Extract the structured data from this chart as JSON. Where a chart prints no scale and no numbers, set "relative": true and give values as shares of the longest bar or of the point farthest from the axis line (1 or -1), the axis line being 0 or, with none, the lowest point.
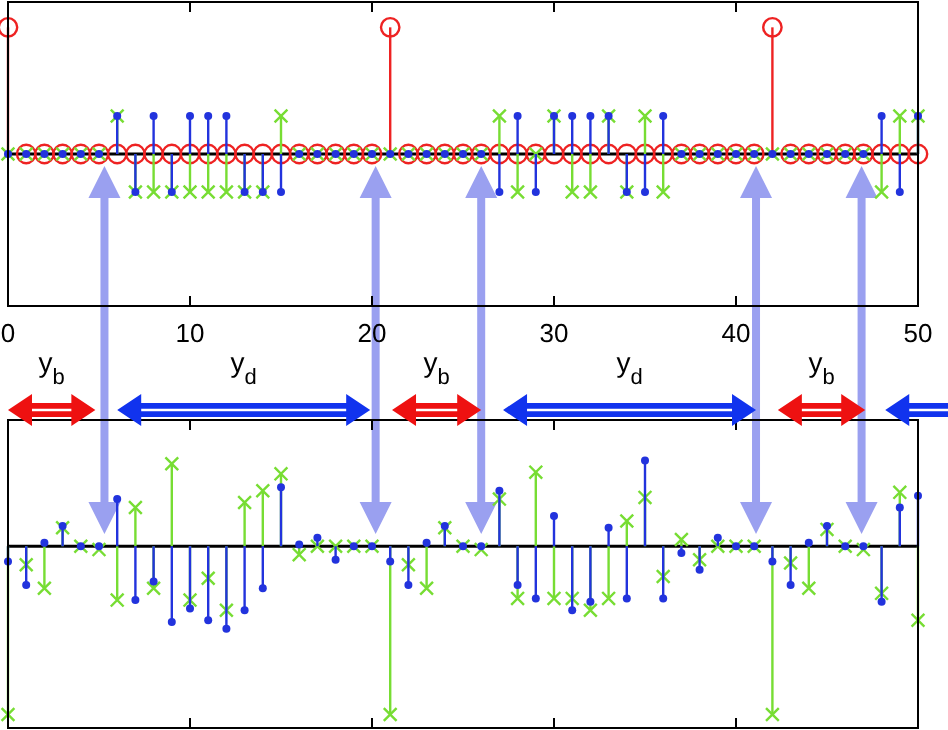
{
  "chart_data": [
    {
      "type": "lollipop",
      "relative": true,
      "x": [
        0,
        1,
        2,
        3,
        4,
        5,
        6,
        7,
        8,
        9,
        10,
        11,
        12,
        13,
        14,
        15,
        16,
        17,
        18,
        19,
        20,
        21,
        22,
        23,
        24,
        25,
        26,
        27,
        28,
        29,
        30,
        31,
        32,
        33,
        34,
        35,
        36,
        37,
        38,
        39,
        40,
        41,
        42,
        43,
        44,
        45,
        46,
        47,
        48,
        49,
        50
      ],
      "xlim": [
        0,
        50
      ],
      "xticks": [
        0,
        10,
        20,
        30,
        40,
        50
      ],
      "tick_labels": "x",
      "grid": false,
      "series": [
        {
          "color": "#ee2222",
          "marker": "circle",
          "values": [
            1,
            0,
            0,
            0,
            0,
            0,
            0,
            0,
            0,
            0,
            0,
            0,
            0,
            0,
            0,
            0,
            0,
            0,
            0,
            0,
            0,
            1,
            0,
            0,
            0,
            0,
            0,
            0,
            0,
            0,
            0,
            0,
            0,
            0,
            0,
            0,
            0,
            0,
            0,
            0,
            0,
            0,
            1,
            0,
            0,
            0,
            0,
            0,
            0,
            0,
            0
          ]
        },
        {
          "color": "#77dd33",
          "marker": "cross",
          "values": [
            0,
            0,
            0,
            0,
            0,
            0,
            0.3,
            -0.3,
            -0.3,
            -0.3,
            -0.3,
            -0.3,
            -0.3,
            -0.3,
            -0.3,
            0.3,
            0,
            0,
            0,
            0,
            0,
            0,
            0,
            0,
            0,
            0,
            0,
            0.3,
            -0.3,
            0,
            0.3,
            -0.3,
            -0.3,
            0.3,
            -0.3,
            0.3,
            -0.3,
            0,
            0,
            0,
            0,
            0,
            0,
            0,
            0,
            0,
            0,
            0,
            -0.3,
            0.3,
            0.3
          ]
        },
        {
          "color": "#2233dd",
          "marker": "circle",
          "values": [
            0,
            0,
            0,
            0,
            0,
            0,
            0.3,
            -0.3,
            0.3,
            -0.3,
            0.3,
            0.3,
            0.3,
            -0.3,
            -0.3,
            -0.3,
            0,
            0,
            0,
            0,
            0,
            0,
            0,
            0,
            0,
            0,
            0,
            -0.3,
            0.3,
            -0.3,
            0.3,
            0.3,
            0.3,
            0.3,
            -0.3,
            -0.3,
            0.3,
            0,
            0,
            0,
            0,
            0,
            0,
            0,
            0,
            0,
            0,
            0,
            0.3,
            -0.3,
            0.3
          ]
        }
      ],
      "annotations": [
        "y$_{b}$",
        "y$_{d}$",
        "y$_{b}$",
        "y$_{d}$",
        "y$_{b}$"
      ]
    },
    {
      "type": "lollipop",
      "relative": true,
      "x": [
        0,
        1,
        2,
        3,
        4,
        5,
        6,
        7,
        8,
        9,
        10,
        11,
        12,
        13,
        14,
        15,
        16,
        17,
        18,
        19,
        20,
        21,
        22,
        23,
        24,
        25,
        26,
        27,
        28,
        29,
        30,
        31,
        32,
        33,
        34,
        35,
        36,
        37,
        38,
        39,
        40,
        41,
        42,
        43,
        44,
        45,
        46,
        47,
        48,
        49,
        50
      ],
      "xlim": [
        0,
        50
      ],
      "xticks": [
        0,
        10,
        20,
        30,
        40,
        50
      ],
      "tick_labels": false,
      "grid": false,
      "series": [
        {
          "color": "#77dd33",
          "marker": "cross",
          "values": [
            -1,
            -0.11,
            -0.25,
            0.11,
            0,
            -0.02,
            -0.32,
            0.23,
            -0.25,
            0.49,
            -0.32,
            -0.19,
            -0.38,
            0.26,
            0.33,
            0.43,
            -0.05,
            0,
            0,
            0,
            0,
            -1,
            -0.11,
            -0.25,
            0.11,
            0,
            -0.02,
            0.28,
            -0.31,
            0.44,
            -0.31,
            -0.31,
            -0.38,
            -0.31,
            0.15,
            0.29,
            -0.18,
            0.04,
            -0.08,
            0,
            0,
            0,
            -1,
            -0.1,
            -0.25,
            0.1,
            0,
            -0.02,
            -0.28,
            0.32,
            -0.44
          ]
        },
        {
          "color": "#2233dd",
          "marker": "circle",
          "values": [
            -0.09,
            -0.23,
            0.02,
            0.12,
            0,
            0,
            0.28,
            -0.32,
            -0.21,
            -0.45,
            -0.37,
            -0.44,
            -0.49,
            -0.38,
            -0.25,
            0.35,
            0.01,
            0.05,
            -0.08,
            0,
            0,
            -0.09,
            -0.23,
            0.02,
            0.12,
            0,
            0,
            0.33,
            -0.23,
            -0.31,
            0.18,
            -0.38,
            -0.33,
            0.11,
            -0.31,
            0.51,
            -0.31,
            -0.04,
            -0.14,
            0.05,
            0,
            0,
            -0.09,
            -0.23,
            0.02,
            0.12,
            0,
            0,
            -0.33,
            0.23,
            0.3
          ]
        }
      ]
    }
  ]
}
